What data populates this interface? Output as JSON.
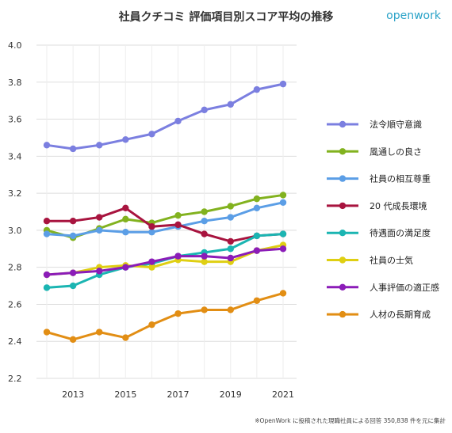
{
  "title": "社員クチコミ 評価項目別スコア平均の推移",
  "brand": "openwork",
  "footnote": "※OpenWork に投稿された現職社員による回答 350,838 件を元に集計",
  "chart_data": {
    "type": "line",
    "x": [
      2012,
      2013,
      2014,
      2015,
      2016,
      2017,
      2018,
      2019,
      2020,
      2021
    ],
    "xticks": [
      2013,
      2015,
      2017,
      2019,
      2021
    ],
    "yticks": [
      2.2,
      2.4,
      2.6,
      2.8,
      3.0,
      3.2,
      3.4,
      3.6,
      3.8,
      4.0
    ],
    "ylim": [
      2.2,
      4.0
    ],
    "grid": true,
    "legend_position": "right",
    "series": [
      {
        "name": "法令順守意識",
        "color": "#7b7fe0",
        "values": [
          3.46,
          3.44,
          3.46,
          3.49,
          3.52,
          3.59,
          3.65,
          3.68,
          3.76,
          3.79
        ]
      },
      {
        "name": "風通しの良さ",
        "color": "#82b21f",
        "values": [
          3.0,
          2.96,
          3.01,
          3.06,
          3.04,
          3.08,
          3.1,
          3.13,
          3.17,
          3.19
        ]
      },
      {
        "name": "社員の相互尊重",
        "color": "#5b9ee6",
        "values": [
          2.98,
          2.97,
          3.0,
          2.99,
          2.99,
          3.02,
          3.05,
          3.07,
          3.12,
          3.15
        ]
      },
      {
        "name": "20 代成長環境",
        "color": "#a8143f",
        "values": [
          3.05,
          3.05,
          3.07,
          3.12,
          3.02,
          3.03,
          2.98,
          2.94,
          2.97,
          2.98
        ]
      },
      {
        "name": "待遇面の満足度",
        "color": "#1bb5b2",
        "values": [
          2.69,
          2.7,
          2.76,
          2.8,
          2.82,
          2.86,
          2.88,
          2.9,
          2.97,
          2.98
        ]
      },
      {
        "name": "社員の士気",
        "color": "#dfcf12",
        "values": [
          2.76,
          2.77,
          2.8,
          2.81,
          2.8,
          2.84,
          2.83,
          2.83,
          2.89,
          2.92
        ]
      },
      {
        "name": "人事評価の適正感",
        "color": "#8b1cb8",
        "values": [
          2.76,
          2.77,
          2.78,
          2.8,
          2.83,
          2.86,
          2.86,
          2.85,
          2.89,
          2.9
        ]
      },
      {
        "name": "人材の長期育成",
        "color": "#e28e14",
        "values": [
          2.45,
          2.41,
          2.45,
          2.42,
          2.49,
          2.55,
          2.57,
          2.57,
          2.62,
          2.66
        ]
      }
    ]
  }
}
